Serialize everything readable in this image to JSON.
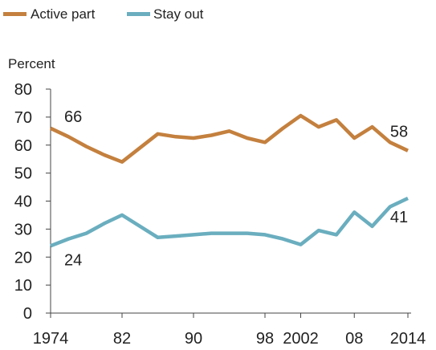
{
  "chart_data": {
    "type": "line",
    "ylabel": "Percent",
    "ylim": [
      0,
      80
    ],
    "yticks": [
      0,
      10,
      20,
      30,
      40,
      50,
      60,
      70,
      80
    ],
    "xlim": [
      1974,
      2014
    ],
    "xticks": [
      {
        "value": 1974,
        "label": "1974"
      },
      {
        "value": 1982,
        "label": "82"
      },
      {
        "value": 1990,
        "label": "90"
      },
      {
        "value": 1998,
        "label": "98"
      },
      {
        "value": 2002,
        "label": "2002"
      },
      {
        "value": 2008,
        "label": "08"
      },
      {
        "value": 2014,
        "label": "2014"
      }
    ],
    "grid": false,
    "legend_placement": "top-left",
    "series": [
      {
        "name": "Active part",
        "color": "#c4803e",
        "x": [
          1974,
          1976,
          1978,
          1980,
          1982,
          1984,
          1986,
          1988,
          1990,
          1992,
          1994,
          1996,
          1998,
          2000,
          2002,
          2004,
          2006,
          2008,
          2010,
          2012,
          2014
        ],
        "y": [
          66,
          63,
          59.5,
          56.5,
          54,
          59,
          64,
          63,
          62.5,
          63.5,
          65,
          62.5,
          61,
          66,
          70.5,
          66.5,
          69,
          62.5,
          66.5,
          61,
          58
        ],
        "start_label": "66",
        "end_label": "58"
      },
      {
        "name": "Stay out",
        "color": "#6aaebf",
        "x": [
          1974,
          1976,
          1978,
          1980,
          1982,
          1984,
          1986,
          1988,
          1990,
          1992,
          1994,
          1996,
          1998,
          2000,
          2002,
          2004,
          2006,
          2008,
          2010,
          2012,
          2014
        ],
        "y": [
          24,
          26.5,
          28.5,
          32,
          35,
          31,
          27,
          27.5,
          28,
          28.5,
          28.5,
          28.5,
          28,
          26.5,
          24.5,
          29.5,
          28,
          36,
          31,
          38,
          41
        ],
        "start_label": "24",
        "end_label": "41"
      }
    ]
  }
}
